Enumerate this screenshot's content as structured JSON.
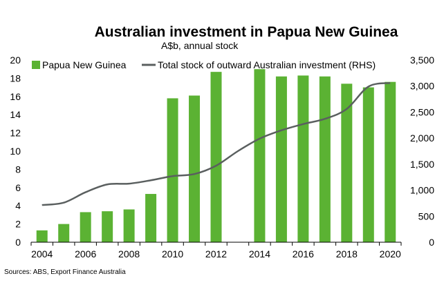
{
  "chart_data": {
    "type": "bar",
    "title": "Australian investment in Papua New Guinea",
    "subtitle": "A$b, annual stock",
    "source": "Sources: ABS, Export Finance Australia",
    "x": [
      2004,
      2005,
      2006,
      2007,
      2008,
      2009,
      2010,
      2011,
      2012,
      2013,
      2014,
      2015,
      2016,
      2017,
      2018,
      2019,
      2020
    ],
    "x_tick_labels": [
      "2004",
      "2006",
      "2008",
      "2010",
      "2012",
      "2014",
      "2016",
      "2018",
      "2020"
    ],
    "ylim": [
      0,
      20
    ],
    "y_ticks": [
      "0",
      "2",
      "4",
      "6",
      "8",
      "10",
      "12",
      "14",
      "16",
      "18",
      "20"
    ],
    "y2lim": [
      0,
      3500
    ],
    "y2_ticks": [
      "0",
      "500",
      "1,000",
      "1,500",
      "2,000",
      "2,500",
      "3,000",
      "3,500"
    ],
    "legend_position": "top",
    "series": [
      {
        "name": "Papua New Guinea",
        "kind": "bar",
        "axis": "left",
        "color": "#5bb233",
        "values": [
          1.3,
          2.0,
          3.3,
          3.4,
          3.6,
          5.3,
          15.8,
          16.1,
          18.7,
          null,
          19.0,
          18.2,
          18.3,
          18.2,
          17.4,
          17.0,
          17.6
        ]
      },
      {
        "name": "Total stock of outward Australian investment (RHS)",
        "kind": "line",
        "axis": "right",
        "color": "#5a5f5f",
        "values": [
          715,
          760,
          960,
          1110,
          1125,
          1190,
          1270,
          1310,
          1470,
          1750,
          1990,
          2150,
          2270,
          2370,
          2560,
          2990,
          3060
        ]
      }
    ]
  }
}
